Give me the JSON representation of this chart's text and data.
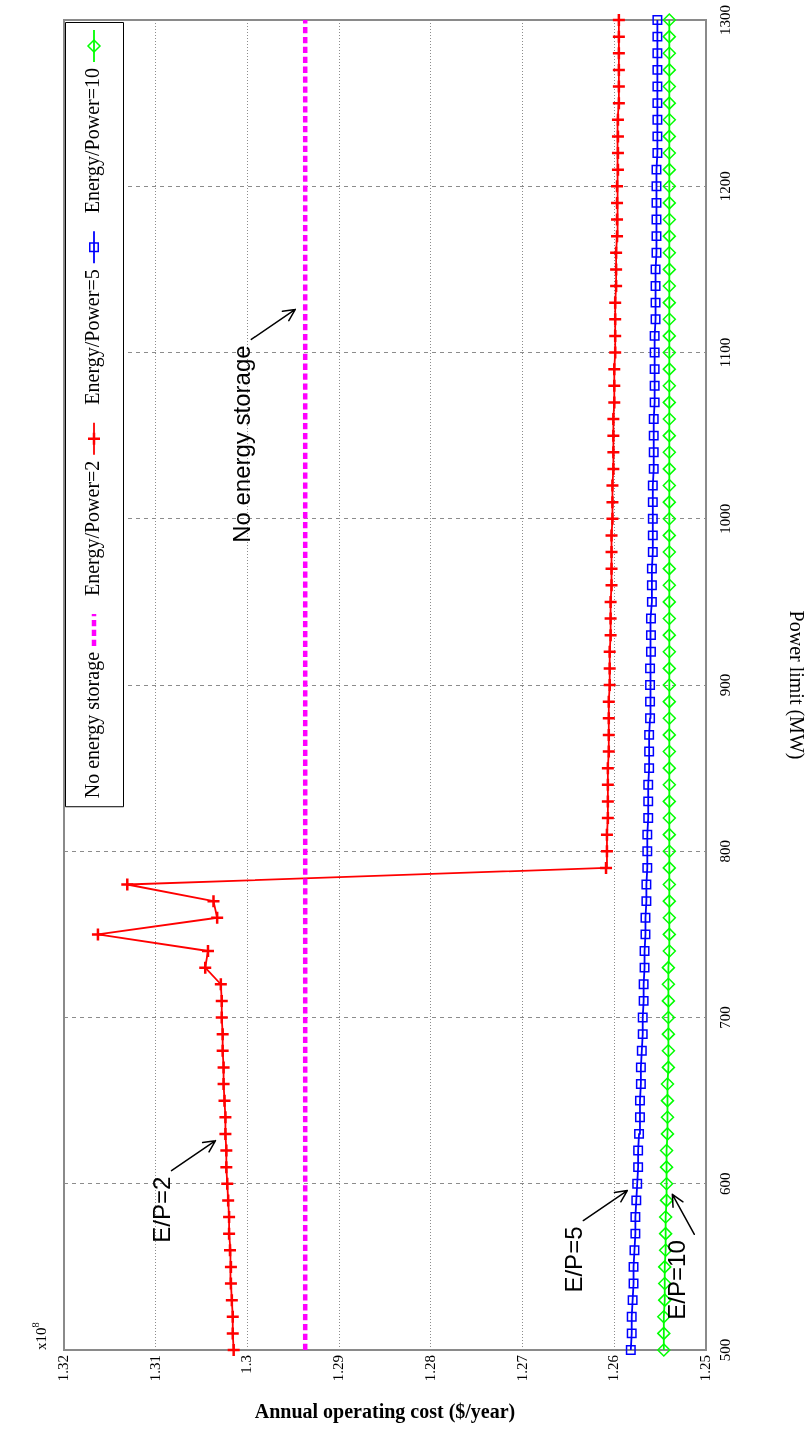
{
  "chart_data": {
    "type": "line",
    "xlabel": "Annual operating cost ($/year)",
    "ylabel": "Power limit (MW)",
    "xlim": [
      1.32,
      1.25
    ],
    "xticks": [
      1.32,
      1.31,
      1.3,
      1.29,
      1.28,
      1.27,
      1.26,
      1.25
    ],
    "ylim": [
      500,
      1300
    ],
    "yticks": [
      500,
      600,
      700,
      800,
      900,
      1000,
      1100,
      1200,
      1300
    ],
    "grid": true,
    "legend": "top left",
    "annotations": [
      "x10$^{8}$",
      {
        "text": "E/P=2",
        "x": 1.3024,
        "y": 630
      },
      {
        "text": "E/P=5",
        "x": 1.2575,
        "y": 600
      },
      {
        "text": "E/P=10",
        "x": 1.2543,
        "y": 600
      },
      {
        "text": "No energy storage",
        "x": 1.2937,
        "y": 1130
      }
    ],
    "series": [
      {
        "name": "No energy storage",
        "color": "#ff00ff",
        "marker": "none",
        "line_style": "dotted",
        "x": [
          1.2937,
          1.2937
        ],
        "values": [
          500,
          1300
        ]
      },
      {
        "name": "Energy/Power=2",
        "color": "#ff0000",
        "marker": "cross",
        "x": [
          1.3015,
          1.3016,
          1.3016,
          1.3017,
          1.3018,
          1.3018,
          1.3019,
          1.302,
          1.302,
          1.3021,
          1.3022,
          1.3023,
          1.3023,
          1.3024,
          1.3024,
          1.3025,
          1.3026,
          1.3026,
          1.3027,
          1.3027,
          1.3028,
          1.3028,
          1.3029,
          1.3046,
          1.3043,
          1.3163,
          1.3033,
          1.3037,
          1.3131,
          1.2609,
          1.2608,
          1.2608,
          1.2607,
          1.2607,
          1.2607,
          1.2607,
          1.2606,
          1.2606,
          1.2606,
          1.2606,
          1.2605,
          1.2605,
          1.2605,
          1.2604,
          1.2604,
          1.2604,
          1.2603,
          1.2603,
          1.2603,
          1.2603,
          1.2602,
          1.2602,
          1.2602,
          1.2601,
          1.2601,
          1.2601,
          1.2601,
          1.26,
          1.26,
          1.26,
          1.2599,
          1.2599,
          1.2599,
          1.2599,
          1.2598,
          1.2598,
          1.2598,
          1.2597,
          1.2597,
          1.2597,
          1.2597,
          1.2596,
          1.2596,
          1.2596,
          1.2596,
          1.2595,
          1.2595,
          1.2595,
          1.2595,
          1.2595,
          1.2595
        ],
        "values": [
          500,
          510,
          520,
          530,
          540,
          550,
          560,
          570,
          580,
          590,
          600,
          610,
          620,
          630,
          640,
          650,
          660,
          670,
          680,
          690,
          700,
          710,
          720,
          730,
          740,
          750,
          760,
          770,
          780,
          790,
          800,
          810,
          820,
          830,
          840,
          850,
          860,
          870,
          880,
          890,
          900,
          910,
          920,
          930,
          940,
          950,
          960,
          970,
          980,
          990,
          1000,
          1010,
          1020,
          1030,
          1040,
          1050,
          1060,
          1070,
          1080,
          1090,
          1100,
          1110,
          1120,
          1130,
          1140,
          1150,
          1160,
          1170,
          1180,
          1190,
          1200,
          1210,
          1220,
          1230,
          1240,
          1250,
          1260,
          1270,
          1280,
          1290,
          1300
        ]
      },
      {
        "name": "Energy/Power=5",
        "color": "#0000ff",
        "marker": "square",
        "x": [
          1.2582,
          1.2581,
          1.2581,
          1.258,
          1.2579,
          1.2579,
          1.2578,
          1.2577,
          1.2577,
          1.2576,
          1.2575,
          1.2574,
          1.2574,
          1.2573,
          1.2572,
          1.2572,
          1.2571,
          1.2571,
          1.257,
          1.2569,
          1.2569,
          1.2568,
          1.2568,
          1.2567,
          1.2567,
          1.2566,
          1.2566,
          1.2565,
          1.2565,
          1.2564,
          1.2564,
          1.2564,
          1.2563,
          1.2563,
          1.2563,
          1.2562,
          1.2562,
          1.2562,
          1.2561,
          1.2561,
          1.2561,
          1.2561,
          1.256,
          1.256,
          1.256,
          1.2559,
          1.2559,
          1.2559,
          1.2558,
          1.2558,
          1.2558,
          1.2558,
          1.2558,
          1.2557,
          1.2557,
          1.2557,
          1.2557,
          1.2556,
          1.2556,
          1.2556,
          1.2556,
          1.2556,
          1.2555,
          1.2555,
          1.2555,
          1.2555,
          1.2554,
          1.2554,
          1.2554,
          1.2554,
          1.2554,
          1.2554,
          1.2553,
          1.2553,
          1.2553,
          1.2553,
          1.2553,
          1.2553,
          1.2553,
          1.2553,
          1.2553
        ],
        "values": [
          500,
          510,
          520,
          530,
          540,
          550,
          560,
          570,
          580,
          590,
          600,
          610,
          620,
          630,
          640,
          650,
          660,
          670,
          680,
          690,
          700,
          710,
          720,
          730,
          740,
          750,
          760,
          770,
          780,
          790,
          800,
          810,
          820,
          830,
          840,
          850,
          860,
          870,
          880,
          890,
          900,
          910,
          920,
          930,
          940,
          950,
          960,
          970,
          980,
          990,
          1000,
          1010,
          1020,
          1030,
          1040,
          1050,
          1060,
          1070,
          1080,
          1090,
          1100,
          1110,
          1120,
          1130,
          1140,
          1150,
          1160,
          1170,
          1180,
          1190,
          1200,
          1210,
          1220,
          1230,
          1240,
          1250,
          1260,
          1270,
          1280,
          1290,
          1300
        ]
      },
      {
        "name": "Energy/Power=10",
        "color": "#00ff00",
        "marker": "diamond",
        "x": [
          1.2546,
          1.2546,
          1.2546,
          1.2545,
          1.2545,
          1.2545,
          1.2544,
          1.2544,
          1.2544,
          1.2543,
          1.2543,
          1.2543,
          1.2543,
          1.2542,
          1.2542,
          1.2542,
          1.2542,
          1.2541,
          1.2541,
          1.2541,
          1.2541,
          1.2541,
          1.2541,
          1.2541,
          1.254,
          1.254,
          1.254,
          1.254,
          1.254,
          1.254,
          1.254,
          1.254,
          1.254,
          1.254,
          1.254,
          1.254,
          1.254,
          1.254,
          1.254,
          1.254,
          1.254,
          1.254,
          1.254,
          1.254,
          1.254,
          1.254,
          1.254,
          1.254,
          1.254,
          1.254,
          1.254,
          1.254,
          1.254,
          1.254,
          1.254,
          1.254,
          1.254,
          1.254,
          1.254,
          1.254,
          1.254,
          1.254,
          1.254,
          1.254,
          1.254,
          1.254,
          1.254,
          1.254,
          1.254,
          1.254,
          1.254,
          1.254,
          1.254,
          1.254,
          1.254,
          1.254,
          1.254,
          1.254,
          1.254,
          1.254,
          1.254
        ],
        "values": [
          500,
          510,
          520,
          530,
          540,
          550,
          560,
          570,
          580,
          590,
          600,
          610,
          620,
          630,
          640,
          650,
          660,
          670,
          680,
          690,
          700,
          710,
          720,
          730,
          740,
          750,
          760,
          770,
          780,
          790,
          800,
          810,
          820,
          830,
          840,
          850,
          860,
          870,
          880,
          890,
          900,
          910,
          920,
          930,
          940,
          950,
          960,
          970,
          980,
          990,
          1000,
          1010,
          1020,
          1030,
          1040,
          1050,
          1060,
          1070,
          1080,
          1090,
          1100,
          1110,
          1120,
          1130,
          1140,
          1150,
          1160,
          1170,
          1180,
          1190,
          1200,
          1210,
          1220,
          1230,
          1240,
          1250,
          1260,
          1270,
          1280,
          1290,
          1300
        ]
      }
    ]
  }
}
